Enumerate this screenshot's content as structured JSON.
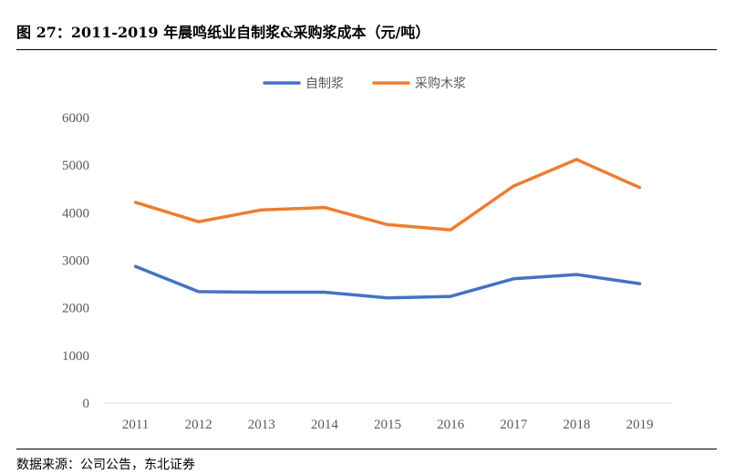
{
  "header": {
    "title": "图 27：2011-2019 年晨鸣纸业自制浆&采购浆成本（元/吨）"
  },
  "footer": {
    "source": "数据来源：公司公告，东北证券"
  },
  "chart_data": {
    "type": "line",
    "title": "",
    "xlabel": "",
    "ylabel": "",
    "categories": [
      "2011",
      "2012",
      "2013",
      "2014",
      "2015",
      "2016",
      "2017",
      "2018",
      "2019"
    ],
    "ylim": [
      0,
      6000
    ],
    "yticks": [
      0,
      1000,
      2000,
      3000,
      4000,
      5000,
      6000
    ],
    "grid": false,
    "legend_position": "top-center",
    "series": [
      {
        "name": "自制浆",
        "color": "#4472C4",
        "values": [
          2870,
          2340,
          2330,
          2330,
          2210,
          2240,
          2610,
          2700,
          2510
        ]
      },
      {
        "name": "采购木浆",
        "color": "#ED7D31",
        "values": [
          4220,
          3810,
          4060,
          4110,
          3750,
          3640,
          4560,
          5120,
          4530
        ]
      }
    ]
  }
}
